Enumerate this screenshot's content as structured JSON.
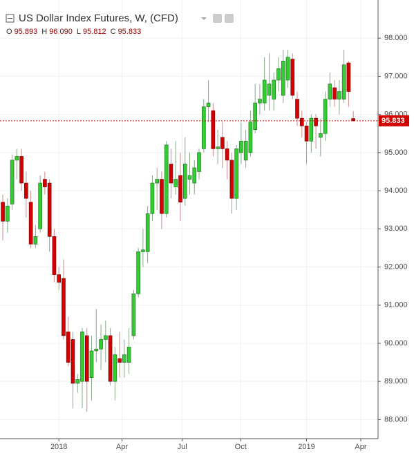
{
  "chart_data": {
    "type": "candlestick",
    "title": "US Dollar Index Futures, W, (CFD)",
    "ohlc_names": [
      "O",
      "H",
      "L",
      "C"
    ],
    "ohlc_value_labels": [
      "95.893",
      "96.090",
      "95.812",
      "95.833"
    ],
    "open": [
      93.7,
      93.2,
      93.65,
      94.8,
      94.9,
      94.2,
      93.7,
      92.6,
      93.0,
      94.3,
      94.2,
      92.8,
      91.8,
      91.7,
      90.3,
      90.1,
      88.95,
      89.0,
      90.2,
      89.1,
      89.8,
      89.85,
      90.1,
      90.2,
      89.0,
      89.6,
      89.5,
      89.5,
      90.2,
      91.3,
      92.4,
      92.4,
      93.4,
      94.2,
      94.3,
      93.4,
      94.7,
      94.1,
      94.4,
      93.8,
      94.3,
      94.2,
      94.5,
      95.1,
      96.2,
      96.1,
      95.1,
      95.4,
      95.1,
      94.8,
      93.8,
      95.0,
      94.8,
      95.0,
      95.6,
      96.3,
      96.3,
      96.5,
      96.4,
      96.9,
      96.5,
      96.9,
      97.45,
      96.4,
      95.9,
      95.7,
      95.3,
      95.9,
      95.4,
      95.5,
      96.4,
      96.7,
      96.4,
      96.4,
      97.35,
      95.893
    ],
    "high": [
      93.9,
      93.8,
      94.95,
      95.1,
      95.1,
      94.5,
      94.0,
      93.1,
      94.4,
      94.5,
      94.3,
      93.0,
      92.0,
      92.2,
      90.7,
      90.3,
      89.2,
      90.4,
      90.4,
      90.2,
      90.9,
      90.5,
      90.6,
      90.4,
      89.9,
      90.3,
      90.1,
      90.4,
      91.4,
      92.5,
      93.0,
      93.6,
      94.4,
      94.6,
      94.5,
      95.3,
      95.1,
      95.3,
      95.0,
      95.4,
      95.0,
      94.8,
      95.1,
      96.4,
      96.9,
      96.3,
      95.6,
      95.8,
      95.3,
      95.0,
      95.2,
      95.8,
      95.6,
      96.1,
      96.8,
      96.8,
      97.5,
      97.6,
      97.1,
      97.5,
      97.7,
      97.7,
      97.6,
      96.6,
      96.1,
      95.8,
      96.0,
      96.0,
      95.9,
      96.6,
      97.1,
      96.9,
      96.9,
      97.7,
      97.4,
      96.09
    ],
    "low": [
      92.7,
      92.9,
      93.5,
      94.3,
      94.0,
      93.3,
      92.5,
      92.5,
      92.9,
      93.9,
      92.4,
      91.6,
      91.4,
      90.1,
      89.4,
      88.3,
      88.7,
      88.3,
      88.2,
      88.5,
      89.5,
      89.3,
      89.5,
      88.9,
      88.5,
      89.1,
      89.1,
      89.2,
      90.1,
      91.2,
      92.0,
      92.1,
      93.2,
      93.5,
      93.0,
      93.3,
      93.8,
      93.9,
      93.2,
      93.6,
      93.9,
      93.9,
      94.3,
      95.0,
      95.8,
      94.9,
      94.7,
      94.6,
      94.3,
      93.4,
      93.5,
      94.7,
      94.6,
      94.9,
      95.5,
      96.0,
      96.1,
      96.1,
      96.1,
      96.6,
      96.3,
      96.7,
      96.4,
      95.7,
      95.4,
      94.7,
      95.0,
      95.1,
      94.9,
      95.3,
      96.2,
      96.2,
      96.0,
      96.3,
      96.2,
      95.812
    ],
    "close": [
      93.2,
      93.6,
      94.8,
      94.9,
      94.2,
      93.8,
      92.6,
      92.8,
      94.2,
      94.1,
      92.8,
      91.8,
      91.6,
      90.2,
      89.5,
      88.95,
      89.05,
      90.3,
      89.0,
      89.8,
      89.85,
      90.1,
      90.2,
      89.0,
      89.7,
      89.5,
      89.7,
      89.9,
      91.3,
      92.4,
      92.45,
      93.4,
      94.2,
      94.3,
      93.4,
      95.2,
      94.2,
      94.3,
      93.7,
      94.7,
      94.4,
      94.6,
      95.0,
      96.2,
      96.3,
      95.1,
      95.15,
      95.1,
      94.8,
      93.8,
      95.1,
      95.3,
      95.3,
      95.8,
      96.3,
      96.4,
      96.9,
      96.8,
      96.9,
      97.2,
      97.4,
      97.5,
      96.5,
      95.9,
      95.7,
      95.3,
      95.9,
      95.7,
      95.5,
      96.4,
      96.8,
      96.4,
      96.6,
      97.3,
      96.6,
      95.833
    ],
    "up_color": "#33cc33",
    "down_color": "#d40000",
    "ylim": [
      87.5,
      99.0
    ],
    "yticks": [
      {
        "value": 88,
        "label": "88.000"
      },
      {
        "value": 89,
        "label": "89.000"
      },
      {
        "value": 90,
        "label": "90.000"
      },
      {
        "value": 91,
        "label": "91.000"
      },
      {
        "value": 92,
        "label": "92.000"
      },
      {
        "value": 93,
        "label": "93.000"
      },
      {
        "value": 94,
        "label": "94.000"
      },
      {
        "value": 95,
        "label": "95.000"
      },
      {
        "value": 96,
        "label": "96.000"
      },
      {
        "value": 97,
        "label": "97.000"
      },
      {
        "value": 98,
        "label": "98.000"
      }
    ],
    "xlim": [
      -0.6,
      80.3
    ],
    "xticks": [
      {
        "value": 12,
        "label": "2018"
      },
      {
        "value": 25.5,
        "label": "Apr"
      },
      {
        "value": 38.4,
        "label": "Jul"
      },
      {
        "value": 50.9,
        "label": "Oct"
      },
      {
        "value": 65,
        "label": "2019"
      },
      {
        "value": 76.6,
        "label": "Apr"
      }
    ],
    "grid": true
  }
}
